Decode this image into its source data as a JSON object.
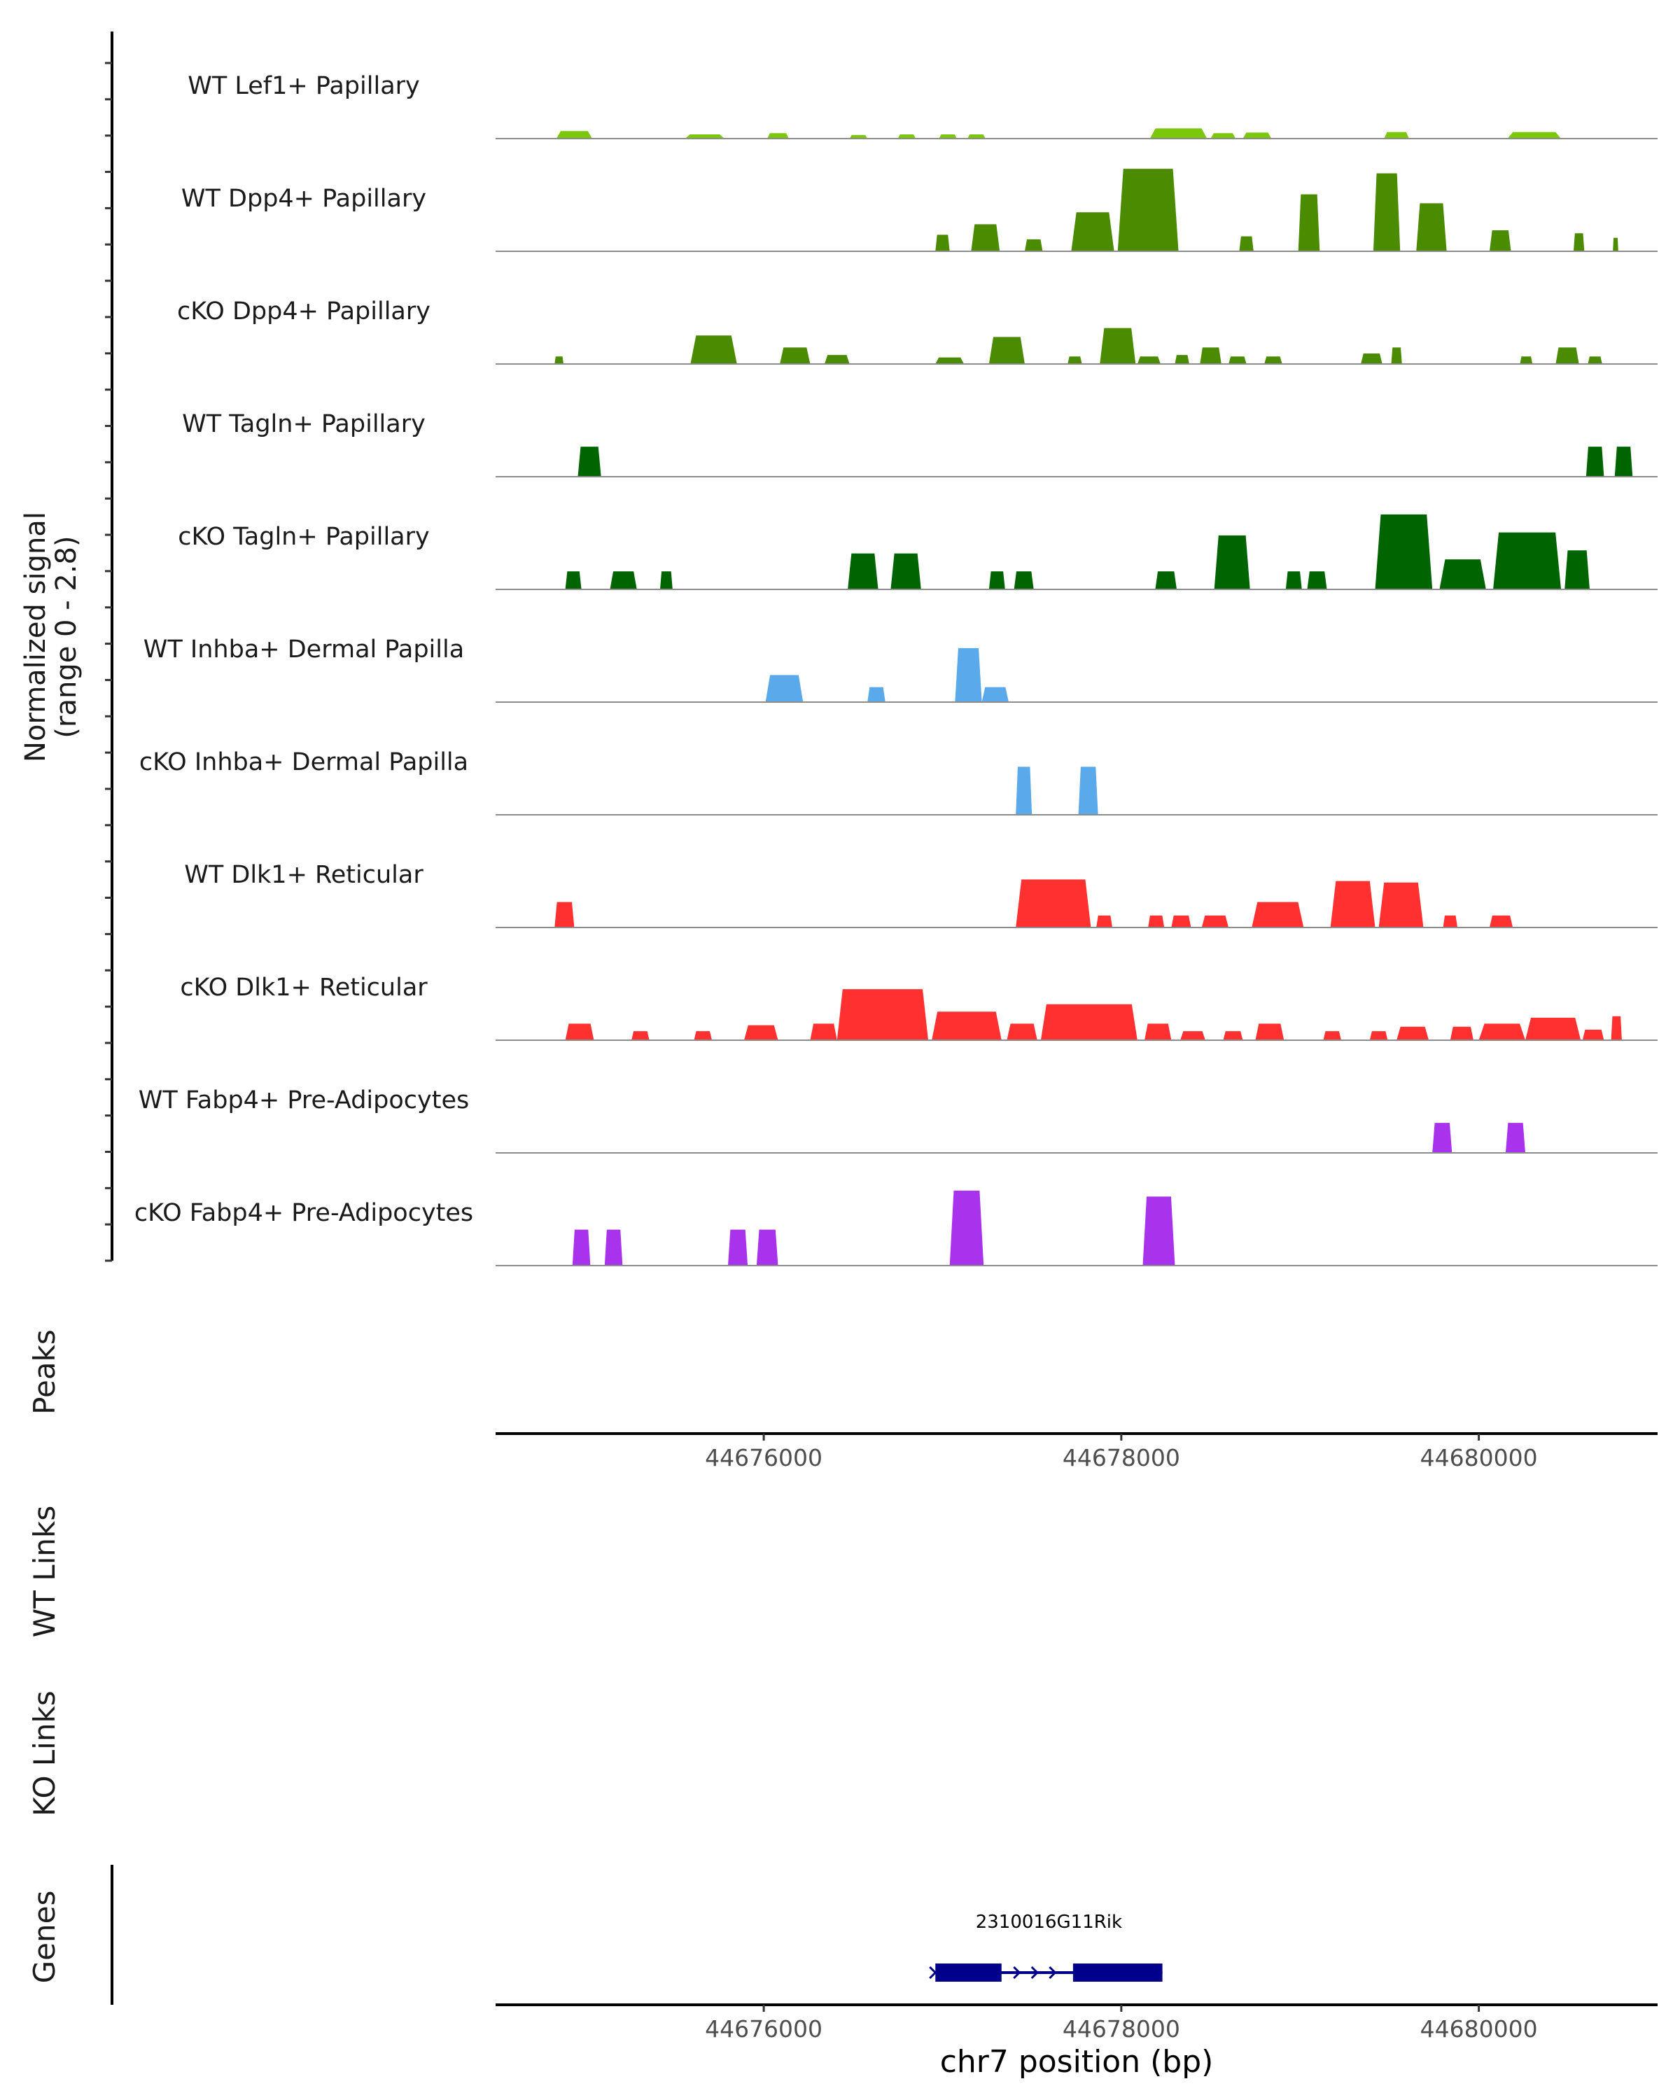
{
  "chart_data": {
    "type": "area",
    "xlim": [
      44674500,
      44681000
    ],
    "x_ticks": [
      44676000,
      44678000,
      44680000
    ],
    "x_tick_labels": [
      "44676000",
      "44678000",
      "44680000"
    ],
    "xlabel": "chr7 position (bp)",
    "coverage_ylabel": [
      "Normalized signal",
      "(range 0 - 2.8)"
    ],
    "ylim": [
      0,
      2.8
    ],
    "panel_labels": {
      "peaks": "Peaks",
      "wt_links": "WT Links",
      "ko_links": "KO Links",
      "genes": "Genes"
    },
    "tracks": [
      {
        "name": "WT Lef1+ Papillary",
        "color": "#7ac70c",
        "peaks": [
          [
            44674840,
            44675040,
            0.25
          ],
          [
            44675560,
            44675780,
            0.14
          ],
          [
            44676020,
            44676140,
            0.18
          ],
          [
            44676480,
            44676580,
            0.12
          ],
          [
            44676750,
            44676850,
            0.14
          ],
          [
            44676980,
            44677080,
            0.14
          ],
          [
            44677140,
            44677240,
            0.14
          ],
          [
            44678160,
            44678480,
            0.34
          ],
          [
            44678500,
            44678640,
            0.18
          ],
          [
            44678680,
            44678840,
            0.2
          ],
          [
            44679470,
            44679610,
            0.22
          ],
          [
            44680160,
            44680460,
            0.22
          ]
        ]
      },
      {
        "name": "WT Dpp4+ Papillary",
        "color": "#4b8b00",
        "peaks": [
          [
            44676960,
            44677040,
            0.55
          ],
          [
            44677160,
            44677320,
            0.9
          ],
          [
            44677460,
            44677560,
            0.4
          ],
          [
            44677720,
            44677960,
            1.3
          ],
          [
            44677980,
            44678320,
            2.75
          ],
          [
            44678660,
            44678740,
            0.5
          ],
          [
            44678990,
            44679110,
            1.9
          ],
          [
            44679410,
            44679560,
            2.6
          ],
          [
            44679650,
            44679820,
            1.6
          ],
          [
            44680060,
            44680180,
            0.7
          ],
          [
            44680530,
            44680590,
            0.6
          ],
          [
            44680750,
            44680780,
            0.45
          ]
        ]
      },
      {
        "name": "cKO Dpp4+ Papillary",
        "color": "#4b8b00",
        "peaks": [
          [
            44674830,
            44674880,
            0.25
          ],
          [
            44675590,
            44675850,
            0.95
          ],
          [
            44676090,
            44676260,
            0.55
          ],
          [
            44676340,
            44676480,
            0.3
          ],
          [
            44676960,
            44677120,
            0.22
          ],
          [
            44677260,
            44677460,
            0.9
          ],
          [
            44677700,
            44677780,
            0.25
          ],
          [
            44677880,
            44678080,
            1.2
          ],
          [
            44678090,
            44678220,
            0.25
          ],
          [
            44678300,
            44678380,
            0.3
          ],
          [
            44678440,
            44678560,
            0.55
          ],
          [
            44678600,
            44678700,
            0.25
          ],
          [
            44678800,
            44678900,
            0.25
          ],
          [
            44679340,
            44679460,
            0.35
          ],
          [
            44679510,
            44679570,
            0.55
          ],
          [
            44680230,
            44680300,
            0.25
          ],
          [
            44680430,
            44680560,
            0.55
          ],
          [
            44680610,
            44680690,
            0.25
          ]
        ]
      },
      {
        "name": "WT Tagln+ Papillary",
        "color": "#006400",
        "peaks": [
          [
            44674960,
            44675090,
            1.0
          ],
          [
            44680600,
            44680700,
            1.0
          ],
          [
            44680760,
            44680860,
            1.0
          ]
        ]
      },
      {
        "name": "cKO Tagln+ Papillary",
        "color": "#006400",
        "peaks": [
          [
            44674890,
            44674980,
            0.6
          ],
          [
            44675140,
            44675290,
            0.6
          ],
          [
            44675420,
            44675490,
            0.6
          ],
          [
            44676470,
            44676640,
            1.2
          ],
          [
            44676710,
            44676880,
            1.2
          ],
          [
            44677260,
            44677350,
            0.6
          ],
          [
            44677400,
            44677510,
            0.6
          ],
          [
            44678190,
            44678310,
            0.6
          ],
          [
            44678520,
            44678720,
            1.8
          ],
          [
            44678920,
            44679010,
            0.6
          ],
          [
            44679040,
            44679150,
            0.6
          ],
          [
            44679420,
            44679740,
            2.5
          ],
          [
            44679780,
            44680040,
            1.0
          ],
          [
            44680080,
            44680460,
            1.9
          ],
          [
            44680480,
            44680620,
            1.3
          ]
        ]
      },
      {
        "name": "WT Inhba+ Dermal Papilla",
        "color": "#5aaaeb",
        "peaks": [
          [
            44676010,
            44676220,
            0.9
          ],
          [
            44676580,
            44676680,
            0.5
          ],
          [
            44677070,
            44677220,
            1.8
          ],
          [
            44677220,
            44677370,
            0.5
          ]
        ]
      },
      {
        "name": "cKO Inhba+ Dermal Papilla",
        "color": "#5aaaeb",
        "peaks": [
          [
            44677410,
            44677500,
            1.6
          ],
          [
            44677760,
            44677870,
            1.6
          ]
        ]
      },
      {
        "name": "WT Dlk1+ Reticular",
        "color": "#ff3030",
        "peaks": [
          [
            44674830,
            44674940,
            0.85
          ],
          [
            44677410,
            44677830,
            1.6
          ],
          [
            44677860,
            44677950,
            0.4
          ],
          [
            44678150,
            44678240,
            0.4
          ],
          [
            44678280,
            44678390,
            0.4
          ],
          [
            44678450,
            44678600,
            0.4
          ],
          [
            44678730,
            44679020,
            0.85
          ],
          [
            44679170,
            44679420,
            1.55
          ],
          [
            44679440,
            44679690,
            1.5
          ],
          [
            44679800,
            44679880,
            0.4
          ],
          [
            44680060,
            44680190,
            0.4
          ]
        ]
      },
      {
        "name": "cKO Dlk1+ Reticular",
        "color": "#ff3030",
        "peaks": [
          [
            44674890,
            44675050,
            0.55
          ],
          [
            44675260,
            44675360,
            0.3
          ],
          [
            44675610,
            44675710,
            0.3
          ],
          [
            44675890,
            44676080,
            0.5
          ],
          [
            44676260,
            44676410,
            0.55
          ],
          [
            44676410,
            44676920,
            1.7
          ],
          [
            44676940,
            44677330,
            0.95
          ],
          [
            44677360,
            44677530,
            0.55
          ],
          [
            44677550,
            44678090,
            1.2
          ],
          [
            44678130,
            44678280,
            0.55
          ],
          [
            44678330,
            44678470,
            0.3
          ],
          [
            44678570,
            44678680,
            0.3
          ],
          [
            44678750,
            44678910,
            0.55
          ],
          [
            44679130,
            44679230,
            0.3
          ],
          [
            44679390,
            44679490,
            0.3
          ],
          [
            44679540,
            44679720,
            0.45
          ],
          [
            44679840,
            44679970,
            0.45
          ],
          [
            44680000,
            44680260,
            0.55
          ],
          [
            44680260,
            44680570,
            0.75
          ],
          [
            44680580,
            44680700,
            0.35
          ],
          [
            44680740,
            44680800,
            0.8
          ]
        ]
      },
      {
        "name": "WT Fabp4+ Pre-Adipocytes",
        "color": "#a933ec",
        "peaks": [
          [
            44679740,
            44679850,
            1.0
          ],
          [
            44680150,
            44680260,
            1.0
          ]
        ]
      },
      {
        "name": "cKO Fabp4+ Pre-Adipocytes",
        "color": "#a933ec",
        "peaks": [
          [
            44674930,
            44675030,
            1.2
          ],
          [
            44675110,
            44675210,
            1.2
          ],
          [
            44675800,
            44675910,
            1.2
          ],
          [
            44675960,
            44676080,
            1.2
          ],
          [
            44677040,
            44677230,
            2.5
          ],
          [
            44678120,
            44678300,
            2.3
          ]
        ]
      }
    ],
    "gene": {
      "name": "2310016G11Rik",
      "start": 44676960,
      "end": 44678230,
      "strand": "+",
      "exons": [
        [
          44676960,
          44677330
        ],
        [
          44677730,
          44678230
        ]
      ],
      "color": "#00008b"
    }
  }
}
